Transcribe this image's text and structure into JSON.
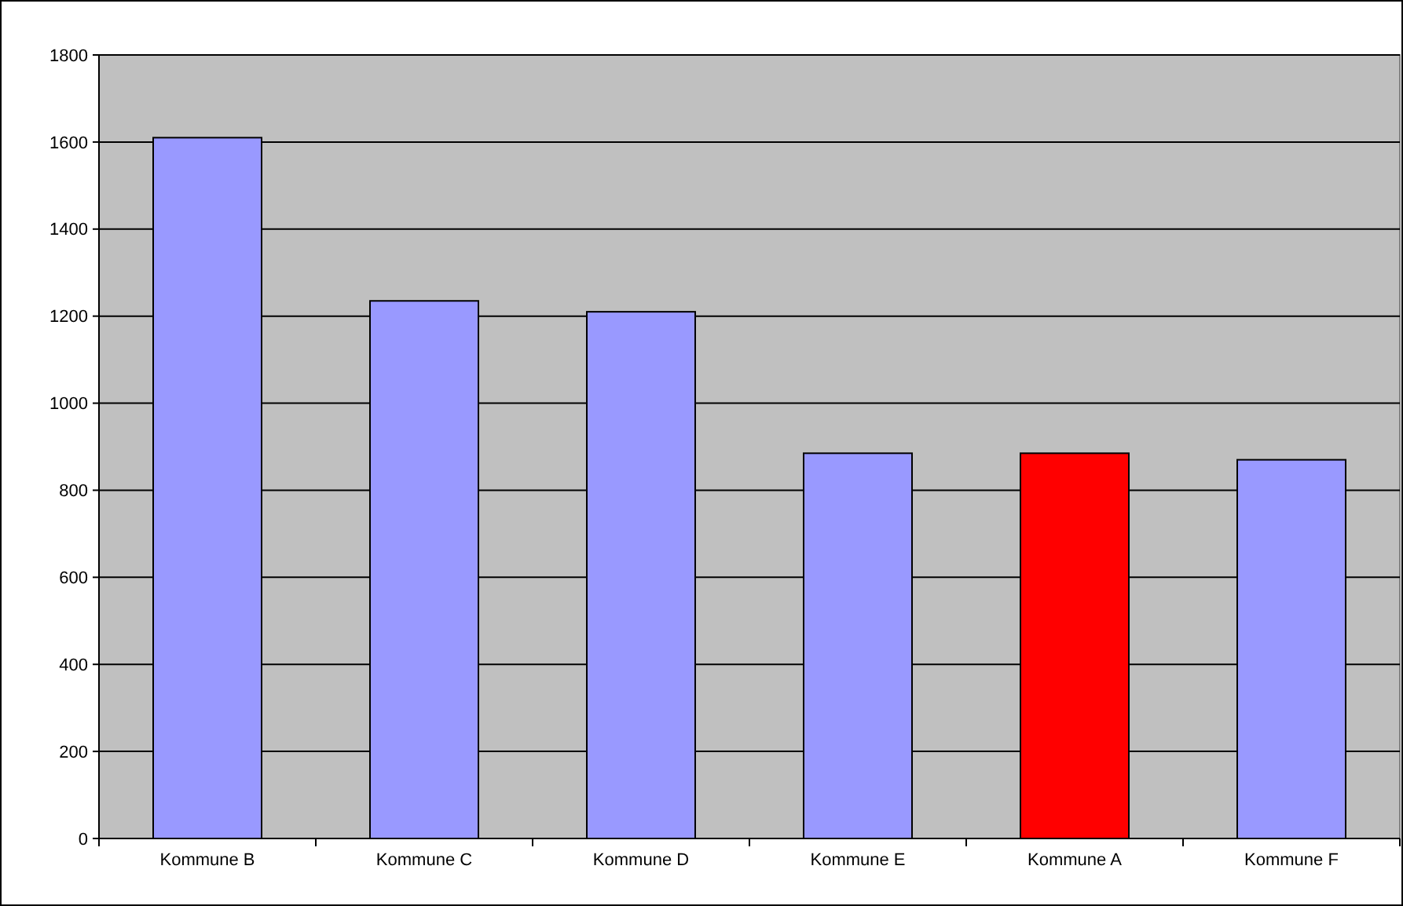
{
  "chart_data": {
    "type": "bar",
    "categories": [
      "Kommune B",
      "Kommune C",
      "Kommune D",
      "Kommune E",
      "Kommune A",
      "Kommune F"
    ],
    "values": [
      1610,
      1235,
      1210,
      885,
      885,
      870
    ],
    "colors": [
      "#9999ff",
      "#9999ff",
      "#9999ff",
      "#9999ff",
      "#ff0000",
      "#9999ff"
    ],
    "ylim": [
      0,
      1800
    ],
    "yticks": [
      0,
      200,
      400,
      600,
      800,
      1000,
      1200,
      1400,
      1600,
      1800
    ],
    "grid": "y"
  }
}
